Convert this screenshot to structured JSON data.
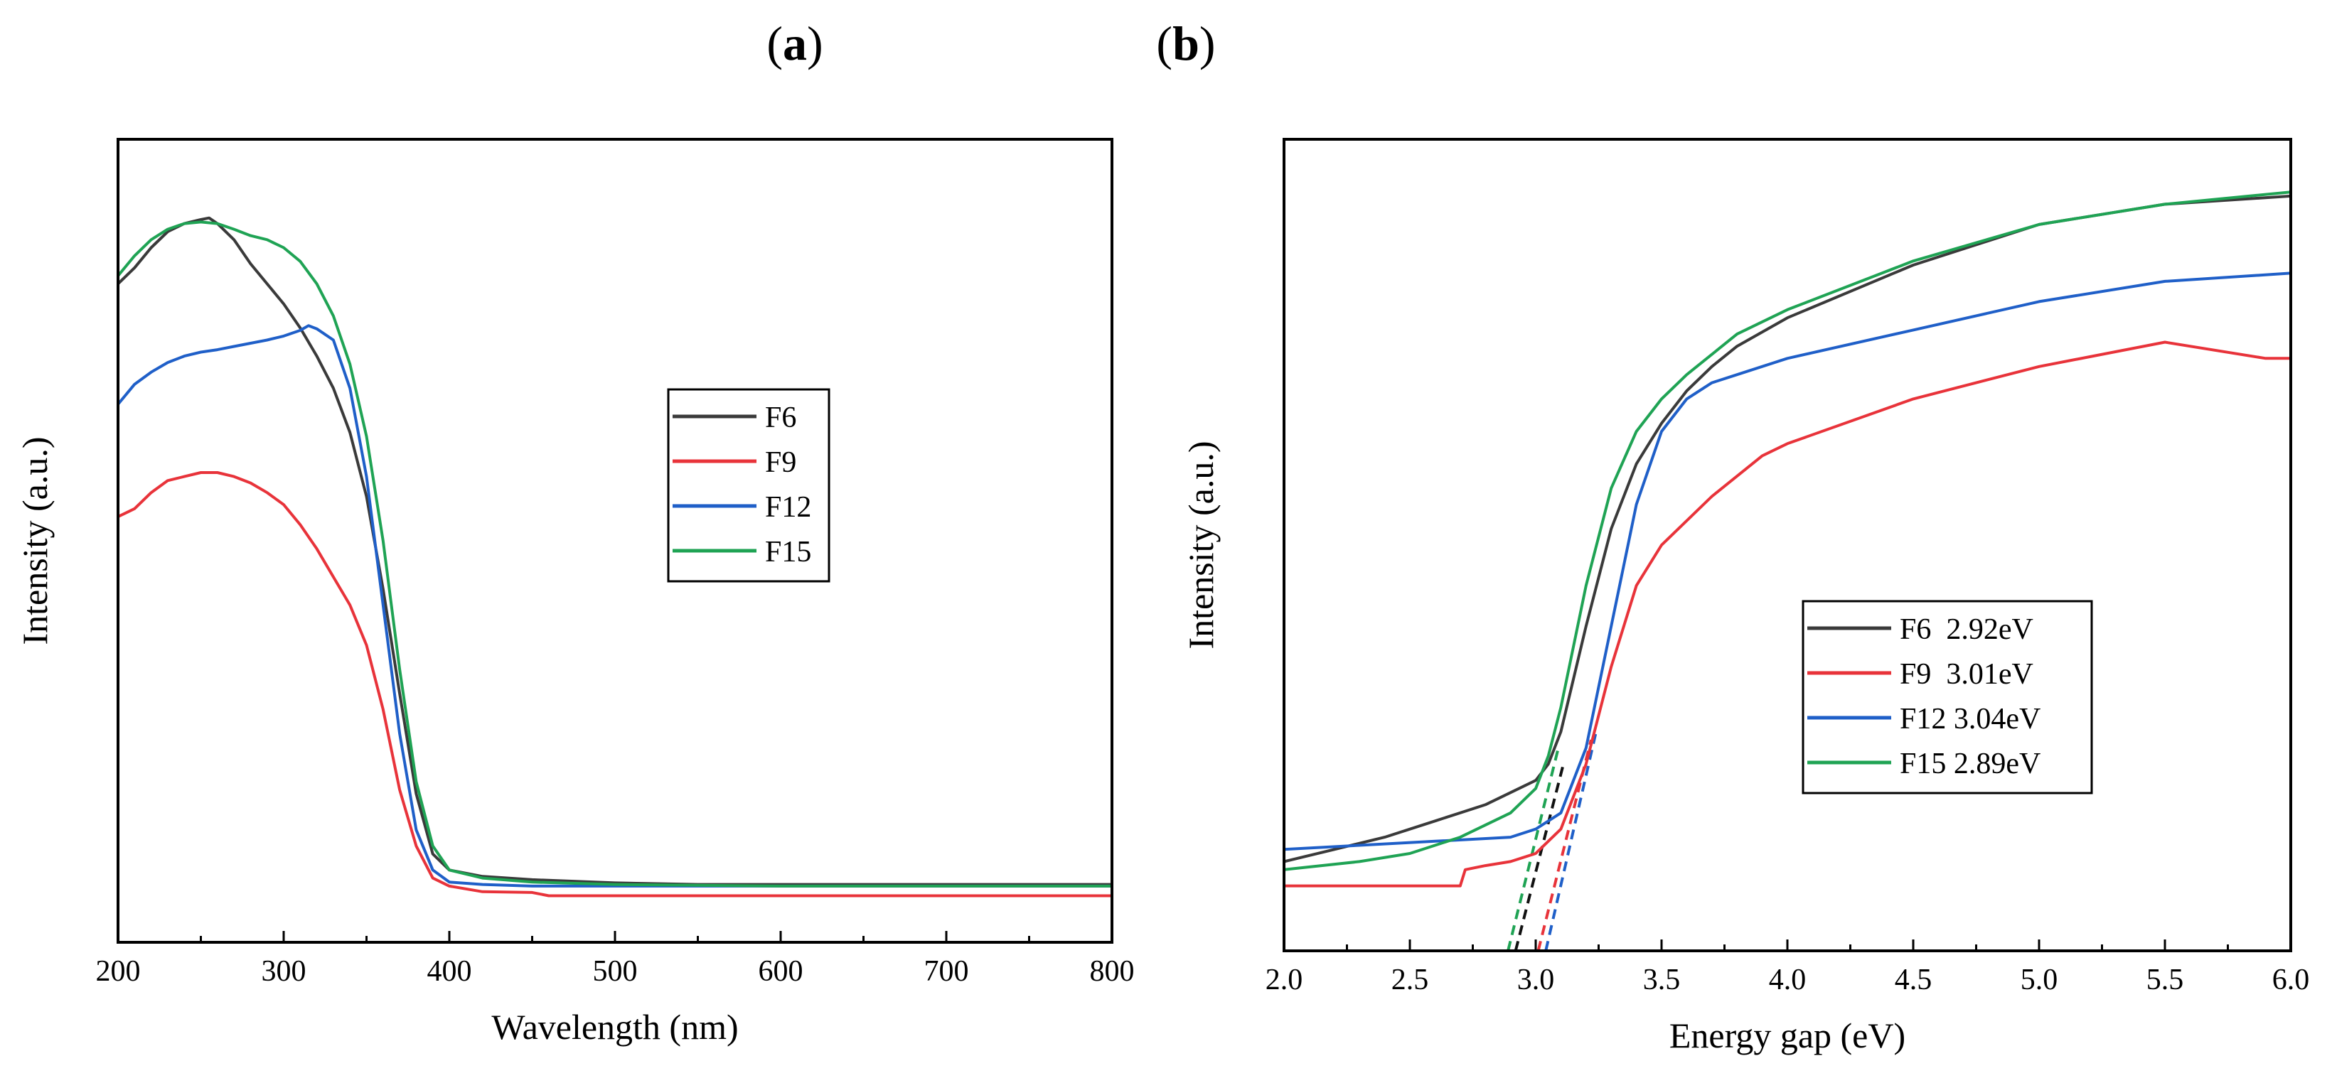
{
  "chart_data": [
    {
      "panel": "(a)",
      "panel_letter": "a",
      "type": "line",
      "xlabel": "Wavelength (nm)",
      "ylabel": "Intensity (a.u.)",
      "xlim": [
        200,
        800
      ],
      "ylim": [
        0,
        1
      ],
      "xticks": [
        200,
        300,
        400,
        500,
        600,
        700,
        800
      ],
      "yticks_labeled": false,
      "legend_position": "center-right",
      "series": [
        {
          "name": "F6",
          "color": "#3a3a3a",
          "x": [
            200,
            210,
            220,
            230,
            240,
            250,
            255,
            260,
            270,
            280,
            290,
            300,
            310,
            320,
            330,
            340,
            350,
            360,
            370,
            380,
            390,
            400,
            420,
            450,
            500,
            550,
            600,
            700,
            800
          ],
          "y": [
            0.82,
            0.84,
            0.865,
            0.885,
            0.895,
            0.9,
            0.902,
            0.895,
            0.875,
            0.845,
            0.82,
            0.795,
            0.765,
            0.73,
            0.69,
            0.635,
            0.555,
            0.44,
            0.31,
            0.185,
            0.11,
            0.09,
            0.082,
            0.078,
            0.074,
            0.072,
            0.072,
            0.072,
            0.072
          ]
        },
        {
          "name": "F9",
          "color": "#e8333a",
          "x": [
            200,
            205,
            210,
            220,
            230,
            240,
            250,
            260,
            270,
            280,
            290,
            300,
            310,
            320,
            330,
            340,
            350,
            360,
            370,
            380,
            390,
            400,
            420,
            450,
            460,
            500,
            600,
            700,
            800
          ],
          "y": [
            0.53,
            0.535,
            0.54,
            0.56,
            0.575,
            0.58,
            0.585,
            0.585,
            0.58,
            0.572,
            0.56,
            0.545,
            0.52,
            0.49,
            0.455,
            0.42,
            0.37,
            0.29,
            0.19,
            0.12,
            0.08,
            0.07,
            0.063,
            0.062,
            0.058,
            0.058,
            0.058,
            0.058,
            0.058
          ]
        },
        {
          "name": "F12",
          "color": "#1f5fc8",
          "x": [
            200,
            210,
            220,
            230,
            240,
            250,
            260,
            270,
            280,
            290,
            300,
            310,
            315,
            320,
            330,
            340,
            350,
            360,
            370,
            380,
            390,
            400,
            420,
            450,
            500,
            600,
            700,
            800
          ],
          "y": [
            0.67,
            0.695,
            0.71,
            0.722,
            0.73,
            0.735,
            0.738,
            0.742,
            0.746,
            0.75,
            0.755,
            0.762,
            0.768,
            0.764,
            0.75,
            0.69,
            0.58,
            0.42,
            0.26,
            0.14,
            0.09,
            0.075,
            0.072,
            0.07,
            0.07,
            0.07,
            0.07,
            0.07
          ]
        },
        {
          "name": "F15",
          "color": "#1fa354",
          "x": [
            200,
            210,
            220,
            230,
            240,
            250,
            260,
            270,
            280,
            290,
            300,
            310,
            320,
            330,
            340,
            350,
            360,
            370,
            380,
            390,
            400,
            420,
            450,
            500,
            600,
            700,
            800
          ],
          "y": [
            0.83,
            0.855,
            0.875,
            0.888,
            0.895,
            0.897,
            0.895,
            0.888,
            0.88,
            0.875,
            0.865,
            0.848,
            0.82,
            0.78,
            0.72,
            0.63,
            0.5,
            0.34,
            0.2,
            0.12,
            0.09,
            0.08,
            0.075,
            0.072,
            0.07,
            0.07,
            0.07
          ]
        }
      ]
    },
    {
      "panel": "(b)",
      "panel_letter": "b",
      "type": "line",
      "xlabel": "Energy gap (eV)",
      "ylabel": "Intensity (a.u.)",
      "xlim": [
        2.0,
        6.0
      ],
      "ylim": [
        0,
        1
      ],
      "xticks": [
        "2.0",
        "2.5",
        "3.0",
        "3.5",
        "4.0",
        "4.5",
        "5.0",
        "5.5",
        "6.0"
      ],
      "yticks_labeled": false,
      "legend_position": "lower-right",
      "series": [
        {
          "name": "F6  2.92eV",
          "color": "#3a3a3a",
          "band_gap": 2.92,
          "x": [
            2.0,
            2.2,
            2.4,
            2.6,
            2.8,
            2.9,
            3.0,
            3.05,
            3.1,
            3.2,
            3.3,
            3.4,
            3.5,
            3.6,
            3.7,
            3.8,
            4.0,
            4.5,
            5.0,
            5.5,
            6.0
          ],
          "y": [
            0.11,
            0.125,
            0.14,
            0.16,
            0.18,
            0.195,
            0.21,
            0.23,
            0.27,
            0.4,
            0.52,
            0.6,
            0.65,
            0.69,
            0.72,
            0.745,
            0.78,
            0.845,
            0.895,
            0.92,
            0.93
          ]
        },
        {
          "name": "F9  3.01eV",
          "color": "#e8333a",
          "band_gap": 3.01,
          "x": [
            2.0,
            2.3,
            2.5,
            2.7,
            2.72,
            2.8,
            2.9,
            3.0,
            3.1,
            3.2,
            3.3,
            3.4,
            3.5,
            3.7,
            3.9,
            4.0,
            4.5,
            5.0,
            5.5,
            5.9,
            6.0
          ],
          "y": [
            0.08,
            0.08,
            0.08,
            0.08,
            0.1,
            0.105,
            0.11,
            0.12,
            0.15,
            0.23,
            0.35,
            0.45,
            0.5,
            0.56,
            0.61,
            0.625,
            0.68,
            0.72,
            0.75,
            0.73,
            0.73
          ]
        },
        {
          "name": "F12 3.04eV",
          "color": "#1f5fc8",
          "band_gap": 3.04,
          "x": [
            2.0,
            2.3,
            2.6,
            2.9,
            3.0,
            3.1,
            3.2,
            3.3,
            3.4,
            3.5,
            3.6,
            3.7,
            3.8,
            4.0,
            4.5,
            5.0,
            5.5,
            6.0
          ],
          "y": [
            0.125,
            0.13,
            0.135,
            0.14,
            0.15,
            0.17,
            0.25,
            0.4,
            0.55,
            0.64,
            0.68,
            0.7,
            0.71,
            0.73,
            0.765,
            0.8,
            0.825,
            0.835
          ]
        },
        {
          "name": "F15 2.89eV",
          "color": "#1fa354",
          "band_gap": 2.89,
          "x": [
            2.0,
            2.3,
            2.5,
            2.7,
            2.9,
            3.0,
            3.05,
            3.1,
            3.2,
            3.3,
            3.4,
            3.5,
            3.6,
            3.8,
            4.0,
            4.5,
            5.0,
            5.5,
            6.0
          ],
          "y": [
            0.1,
            0.11,
            0.12,
            0.14,
            0.17,
            0.2,
            0.24,
            0.3,
            0.45,
            0.57,
            0.64,
            0.68,
            0.71,
            0.76,
            0.79,
            0.85,
            0.895,
            0.92,
            0.935
          ]
        }
      ],
      "tangent_lines": [
        {
          "series": "F6  2.92eV",
          "color": "#111111",
          "x": [
            2.92,
            3.11
          ],
          "y": [
            0.0,
            0.23
          ]
        },
        {
          "series": "F15 2.89eV",
          "color": "#1fa354",
          "x": [
            2.89,
            3.09
          ],
          "y": [
            0.0,
            0.25
          ]
        },
        {
          "series": "F9  3.01eV",
          "color": "#e8333a",
          "x": [
            3.01,
            3.22
          ],
          "y": [
            0.0,
            0.26
          ]
        },
        {
          "series": "F12 3.04eV",
          "color": "#1f5fc8",
          "x": [
            3.04,
            3.24
          ],
          "y": [
            0.0,
            0.27
          ]
        }
      ]
    }
  ]
}
